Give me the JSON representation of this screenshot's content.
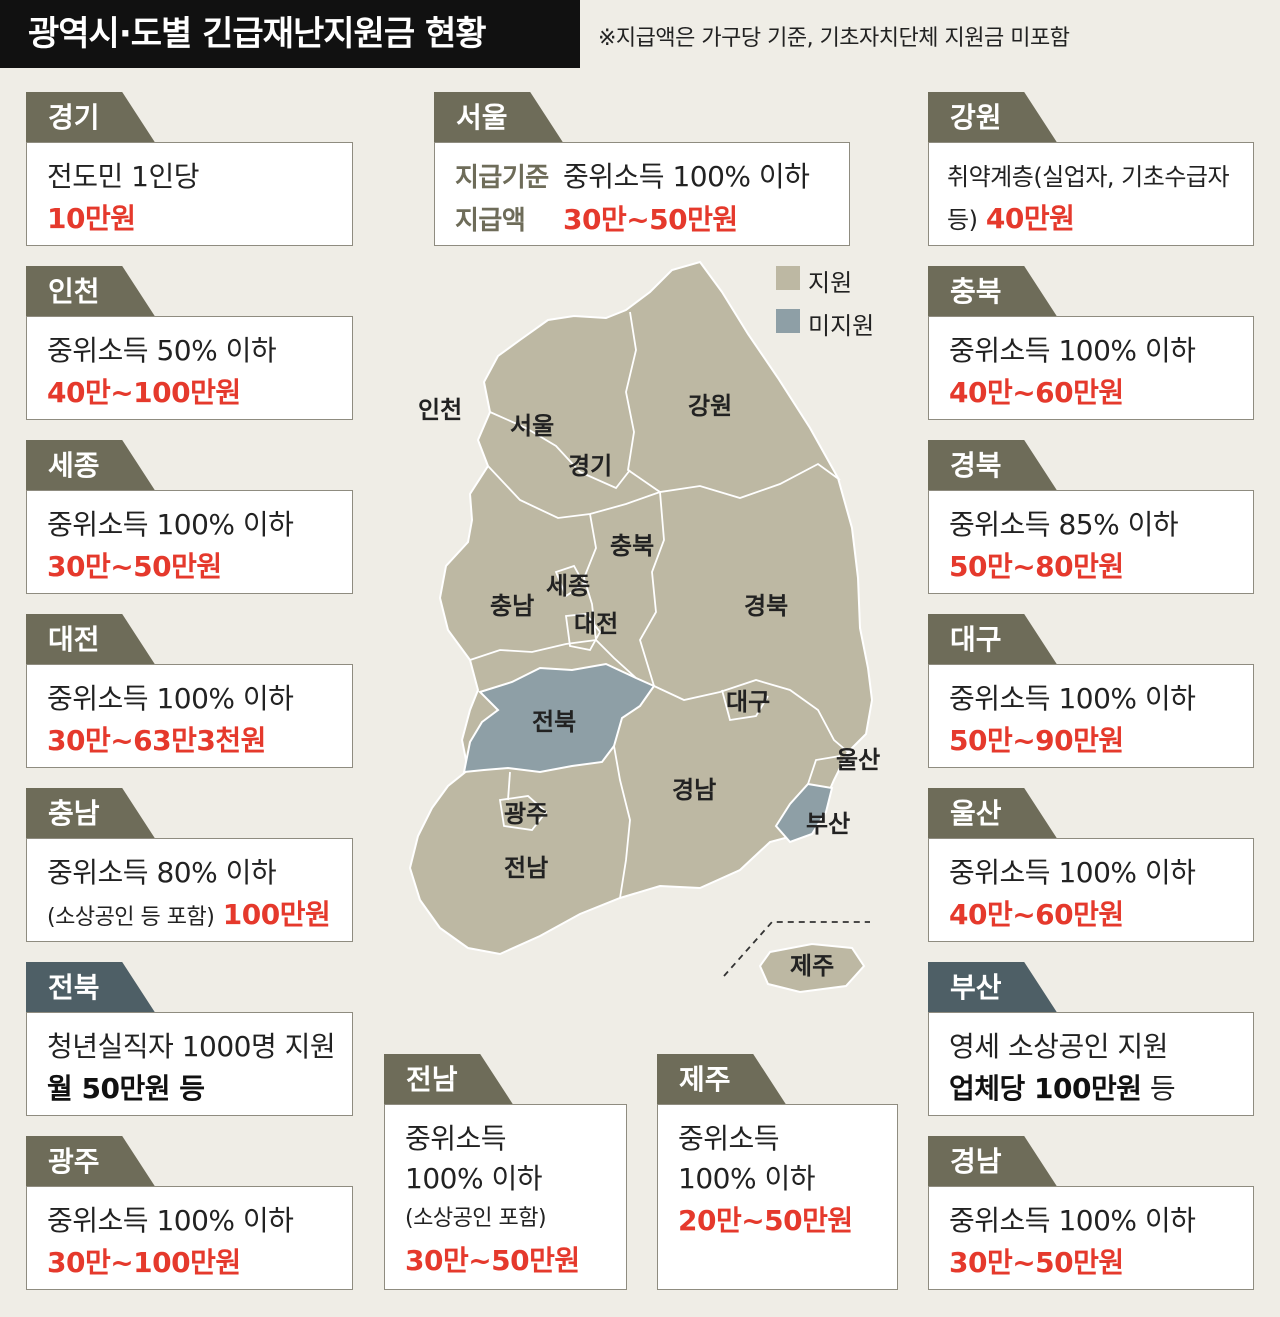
{
  "title": "광역시·도별 긴급재난지원금 현황",
  "note": "※지급액은 가구당 기준, 기초자치단체 지원금 미포함",
  "colors": {
    "supported": "#bdb8a3",
    "unsupported": "#8e9fa6",
    "accent_red": "#e5392c",
    "tab_supported": "#6e6c59",
    "tab_unsupported": "#4e5f66"
  },
  "legend": {
    "supported": "지원",
    "unsupported": "미지원"
  },
  "regions": {
    "gyeonggi": {
      "name": "경기",
      "status": "supported",
      "line1": "전도민 1인당",
      "amount": "10만원"
    },
    "seoul": {
      "name": "서울",
      "status": "supported",
      "label1": "지급기준",
      "value1": "중위소득 100% 이하",
      "label2": "지급액",
      "amount": "30만~50만원"
    },
    "gangwon": {
      "name": "강원",
      "status": "supported",
      "line1": "취약계층(실업자, 기초수급자",
      "line2_prefix": "등)",
      "amount": "40만원"
    },
    "incheon": {
      "name": "인천",
      "status": "supported",
      "line1": "중위소득 50% 이하",
      "amount": "40만~100만원"
    },
    "chungbuk": {
      "name": "충북",
      "status": "supported",
      "line1": "중위소득 100% 이하",
      "amount": "40만~60만원"
    },
    "sejong": {
      "name": "세종",
      "status": "supported",
      "line1": "중위소득 100% 이하",
      "amount": "30만~50만원"
    },
    "gyeongbuk": {
      "name": "경북",
      "status": "supported",
      "line1": "중위소득 85% 이하",
      "amount": "50만~80만원"
    },
    "daejeon": {
      "name": "대전",
      "status": "supported",
      "line1": "중위소득 100% 이하",
      "amount": "30만~63만3천원"
    },
    "daegu": {
      "name": "대구",
      "status": "supported",
      "line1": "중위소득 100% 이하",
      "amount": "50만~90만원"
    },
    "chungnam": {
      "name": "충남",
      "status": "supported",
      "line1": "중위소득 80% 이하",
      "line2_prefix": "(소상공인 등 포함)",
      "amount": "100만원"
    },
    "ulsan": {
      "name": "울산",
      "status": "supported",
      "line1": "중위소득 100% 이하",
      "amount": "40만~60만원"
    },
    "jeonbuk": {
      "name": "전북",
      "status": "unsupported",
      "line1": "청년실직자 1000명 지원",
      "amount": "월 50만원 등"
    },
    "busan": {
      "name": "부산",
      "status": "unsupported",
      "line1": "영세 소상공인 지원",
      "amount": "업체당 100만원",
      "suffix": "등"
    },
    "gwangju": {
      "name": "광주",
      "status": "supported",
      "line1": "중위소득 100% 이하",
      "amount": "30만~100만원"
    },
    "jeonnam": {
      "name": "전남",
      "status": "supported",
      "line1": "중위소득",
      "line2": "100% 이하",
      "line3": "(소상공인 포함)",
      "amount": "30만~50만원"
    },
    "jeju": {
      "name": "제주",
      "status": "supported",
      "line1": "중위소득",
      "line2": "100% 이하",
      "amount": "20만~50만원"
    },
    "gyeongnam": {
      "name": "경남",
      "status": "supported",
      "line1": "중위소득 100% 이하",
      "amount": "30만~50만원"
    }
  }
}
